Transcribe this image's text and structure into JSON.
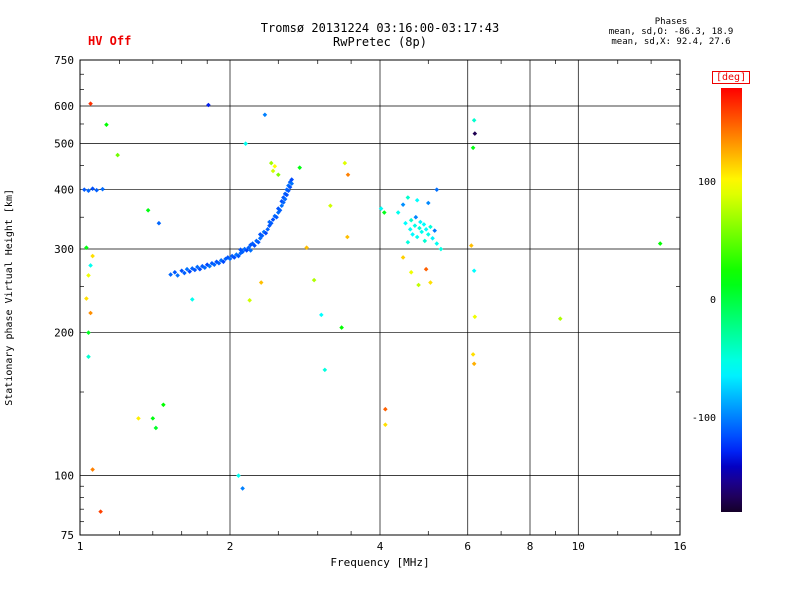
{
  "header": {
    "hv_status": "HV Off",
    "title": "Tromsø 20131224 03:16:00-03:17:43",
    "subtitle": "RwPretec (8p)",
    "phase_stats": {
      "heading": "Phases",
      "line_o": "mean, sd,O: -86.3, 18.9",
      "line_x": "mean, sd,X:  92.4, 27.6"
    }
  },
  "axes": {
    "x_label": "Frequency [MHz]",
    "y_label": "Stationary phase Virtual Height [km]",
    "x_ticks": [
      1,
      2,
      4,
      6,
      8,
      10,
      16
    ],
    "y_ticks": [
      75,
      100,
      200,
      300,
      400,
      500,
      600,
      750
    ],
    "x_minor_ticks": [
      1.2,
      1.4,
      1.6,
      1.8,
      2.5,
      3,
      3.5,
      5,
      7,
      9,
      12,
      14
    ],
    "y_minor_ticks": [
      80,
      85,
      90,
      95,
      150,
      250,
      350,
      450,
      550,
      650,
      700
    ],
    "x_range": [
      1,
      16
    ],
    "y_range": [
      75,
      750
    ]
  },
  "colorbar": {
    "label": "[deg]",
    "ticks": [
      100,
      0,
      -100
    ],
    "range": [
      -180,
      180
    ],
    "label_color": "#ee0000"
  },
  "chart_data": {
    "type": "scatter",
    "title": "Tromsø 20131224 03:16:00-03:17:43",
    "subtitle": "RwPretec (8p)",
    "xlabel": "Frequency [MHz]",
    "ylabel": "Stationary phase Virtual Height [km]",
    "xscale": "log",
    "yscale": "log",
    "xlim": [
      1,
      16
    ],
    "ylim": [
      75,
      750
    ],
    "color_label": "[deg]",
    "color_range": [
      -180,
      180
    ],
    "legend": "color encodes stationary phase in degrees",
    "points_format": [
      "frequency_MHz",
      "virtual_height_km",
      "phase_deg"
    ],
    "points": [
      [
        1.52,
        265,
        -108
      ],
      [
        1.55,
        268,
        -112
      ],
      [
        1.57,
        264,
        -105
      ],
      [
        1.6,
        270,
        -115
      ],
      [
        1.62,
        267,
        -110
      ],
      [
        1.64,
        272,
        -104
      ],
      [
        1.66,
        269,
        -118
      ],
      [
        1.68,
        273,
        -109
      ],
      [
        1.7,
        271,
        -113
      ],
      [
        1.72,
        275,
        -106
      ],
      [
        1.74,
        272,
        -116
      ],
      [
        1.76,
        276,
        -111
      ],
      [
        1.78,
        274,
        -107
      ],
      [
        1.8,
        278,
        -119
      ],
      [
        1.82,
        276,
        -103
      ],
      [
        1.84,
        280,
        -112
      ],
      [
        1.86,
        278,
        -108
      ],
      [
        1.88,
        282,
        -115
      ],
      [
        1.9,
        280,
        -110
      ],
      [
        1.92,
        284,
        -105
      ],
      [
        1.94,
        282,
        -117
      ],
      [
        1.96,
        286,
        -109
      ],
      [
        1.98,
        288,
        -113
      ],
      [
        2.0,
        286,
        -107
      ],
      [
        2.02,
        290,
        -111
      ],
      [
        2.04,
        288,
        -116
      ],
      [
        2.06,
        292,
        -104
      ],
      [
        2.08,
        290,
        -112
      ],
      [
        2.1,
        294,
        -108
      ],
      [
        2.1,
        299,
        -114
      ],
      [
        2.12,
        296,
        -110
      ],
      [
        2.14,
        300,
        -106
      ],
      [
        2.16,
        298,
        -118
      ],
      [
        2.18,
        302,
        -109
      ],
      [
        2.2,
        306,
        -113
      ],
      [
        2.2,
        298,
        -105
      ],
      [
        2.22,
        308,
        -111
      ],
      [
        2.24,
        305,
        -115
      ],
      [
        2.26,
        312,
        -108
      ],
      [
        2.28,
        310,
        -112
      ],
      [
        2.3,
        316,
        -106
      ],
      [
        2.3,
        322,
        -114
      ],
      [
        2.32,
        320,
        -110
      ],
      [
        2.34,
        326,
        -104
      ],
      [
        2.36,
        324,
        -117
      ],
      [
        2.38,
        330,
        -109
      ],
      [
        2.4,
        336,
        -113
      ],
      [
        2.4,
        342,
        -107
      ],
      [
        2.42,
        340,
        -111
      ],
      [
        2.44,
        346,
        -115
      ],
      [
        2.46,
        352,
        -108
      ],
      [
        2.48,
        350,
        -112
      ],
      [
        2.5,
        358,
        -106
      ],
      [
        2.5,
        365,
        -114
      ],
      [
        2.52,
        362,
        -110
      ],
      [
        2.54,
        370,
        -105
      ],
      [
        2.54,
        378,
        -116
      ],
      [
        2.56,
        376,
        -109
      ],
      [
        2.56,
        385,
        -113
      ],
      [
        2.58,
        382,
        -107
      ],
      [
        2.58,
        392,
        -111
      ],
      [
        2.6,
        390,
        -115
      ],
      [
        2.6,
        400,
        -108
      ],
      [
        2.62,
        398,
        -112
      ],
      [
        2.62,
        408,
        -106
      ],
      [
        2.64,
        405,
        -114
      ],
      [
        2.64,
        415,
        -110
      ],
      [
        2.66,
        412,
        -104
      ],
      [
        2.66,
        420,
        -117
      ],
      [
        1.02,
        400,
        -112
      ],
      [
        1.04,
        398,
        -108
      ],
      [
        1.06,
        402,
        -115
      ],
      [
        1.08,
        399,
        -110
      ],
      [
        1.11,
        401,
        -106
      ],
      [
        1.44,
        340,
        -108
      ],
      [
        1.81,
        603,
        -130
      ],
      [
        2.35,
        575,
        -100
      ],
      [
        5.2,
        400,
        -105
      ],
      [
        2.12,
        94,
        -100
      ],
      [
        4.35,
        358,
        -55
      ],
      [
        4.45,
        372,
        -95
      ],
      [
        4.5,
        340,
        -60
      ],
      [
        4.55,
        310,
        -50
      ],
      [
        4.6,
        330,
        -58
      ],
      [
        4.62,
        345,
        -45
      ],
      [
        4.65,
        322,
        -62
      ],
      [
        4.7,
        336,
        -52
      ],
      [
        4.72,
        350,
        -98
      ],
      [
        4.75,
        318,
        -57
      ],
      [
        4.8,
        332,
        -48
      ],
      [
        4.82,
        342,
        -63
      ],
      [
        4.85,
        326,
        -54
      ],
      [
        4.9,
        338,
        -59
      ],
      [
        4.92,
        312,
        -46
      ],
      [
        4.95,
        330,
        -61
      ],
      [
        5.0,
        322,
        -53
      ],
      [
        5.05,
        334,
        -49
      ],
      [
        5.1,
        316,
        -64
      ],
      [
        5.15,
        328,
        -102
      ],
      [
        5.2,
        308,
        -56
      ],
      [
        5.3,
        300,
        -51
      ],
      [
        4.55,
        385,
        -44
      ],
      [
        4.75,
        380,
        -60
      ],
      [
        5.0,
        375,
        -97
      ],
      [
        4.45,
        288,
        115
      ],
      [
        4.62,
        268,
        95
      ],
      [
        4.78,
        252,
        80
      ],
      [
        4.95,
        272,
        150
      ],
      [
        5.05,
        255,
        110
      ],
      [
        1.05,
        607,
        165
      ],
      [
        1.13,
        548,
        20
      ],
      [
        1.19,
        473,
        55
      ],
      [
        1.37,
        362,
        15
      ],
      [
        1.03,
        302,
        15
      ],
      [
        1.06,
        290,
        110
      ],
      [
        1.05,
        277,
        -55
      ],
      [
        1.04,
        264,
        95
      ],
      [
        1.03,
        236,
        110
      ],
      [
        1.05,
        220,
        135
      ],
      [
        1.04,
        200,
        10
      ],
      [
        1.04,
        178,
        -45
      ],
      [
        1.06,
        103,
        140
      ],
      [
        1.1,
        84,
        160
      ],
      [
        1.31,
        132,
        105
      ],
      [
        1.4,
        132,
        15
      ],
      [
        1.42,
        126,
        8
      ],
      [
        1.47,
        141,
        20
      ],
      [
        1.68,
        235,
        -55
      ],
      [
        2.08,
        100,
        -55
      ],
      [
        2.15,
        500,
        -55
      ],
      [
        2.19,
        234,
        85
      ],
      [
        2.31,
        255,
        120
      ],
      [
        2.42,
        455,
        70
      ],
      [
        2.44,
        438,
        85
      ],
      [
        2.46,
        448,
        100
      ],
      [
        2.5,
        430,
        60
      ],
      [
        2.76,
        445,
        15
      ],
      [
        2.85,
        302,
        120
      ],
      [
        2.95,
        258,
        75
      ],
      [
        3.05,
        218,
        -60
      ],
      [
        3.1,
        167,
        -50
      ],
      [
        3.18,
        370,
        85
      ],
      [
        3.35,
        205,
        20
      ],
      [
        3.4,
        455,
        90
      ],
      [
        3.44,
        318,
        120
      ],
      [
        3.45,
        430,
        140
      ],
      [
        4.02,
        365,
        -58
      ],
      [
        4.08,
        358,
        12
      ],
      [
        4.1,
        138,
        150
      ],
      [
        4.1,
        128,
        110
      ],
      [
        6.1,
        305,
        120
      ],
      [
        6.15,
        180,
        110
      ],
      [
        6.15,
        490,
        15
      ],
      [
        6.18,
        172,
        125
      ],
      [
        6.18,
        270,
        -60
      ],
      [
        6.18,
        560,
        -45
      ],
      [
        6.2,
        216,
        95
      ],
      [
        6.2,
        525,
        -170
      ],
      [
        9.2,
        214,
        75
      ],
      [
        14.6,
        308,
        20
      ]
    ]
  }
}
